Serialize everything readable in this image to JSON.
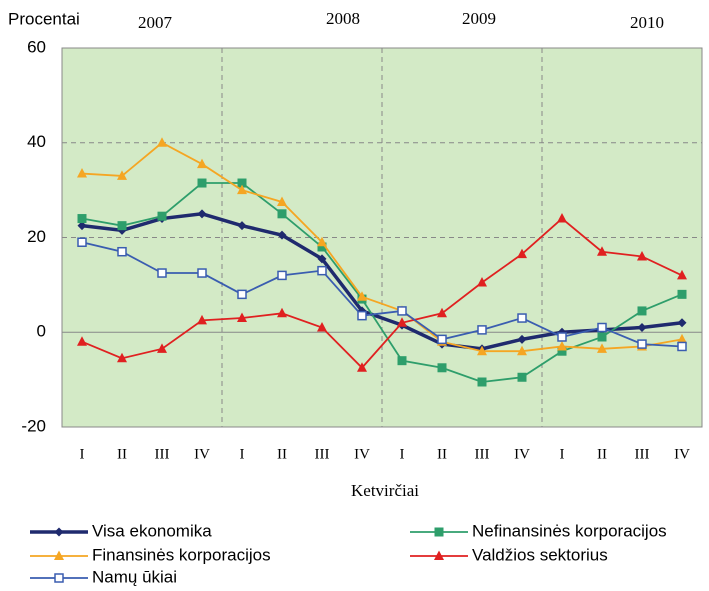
{
  "chart_data": {
    "type": "line",
    "y_label": "Procentai",
    "x_label": "Ketvirčiai",
    "annotations": [
      "2007",
      "2008",
      "2009",
      "2010"
    ],
    "categories": [
      "I",
      "II",
      "III",
      "IV",
      "I",
      "II",
      "III",
      "IV",
      "I",
      "II",
      "III",
      "IV",
      "I",
      "II",
      "III",
      "IV"
    ],
    "ylim": [
      -20,
      60
    ],
    "yticks": [
      60,
      40,
      20,
      0,
      -20
    ],
    "grid": true,
    "series": [
      {
        "name": "Visa ekonomika",
        "color": "#1f2a6e",
        "marker": "diamond",
        "values": [
          22.5,
          21.5,
          24,
          25,
          22.5,
          20.5,
          15.5,
          4.5,
          1.5,
          -2.5,
          -3.5,
          -1.5,
          0,
          0.5,
          1,
          2
        ]
      },
      {
        "name": "Nefinansinės korporacijos",
        "color": "#2e9e6b",
        "marker": "square",
        "values": [
          24,
          22.5,
          24.5,
          31.5,
          31.5,
          25,
          18,
          7,
          -6,
          -7.5,
          -10.5,
          -9.5,
          -4,
          -1,
          4.5,
          8
        ]
      },
      {
        "name": "Finansinės korporacijos",
        "color": "#f5a623",
        "marker": "triangle",
        "values": [
          33.5,
          33,
          40,
          35.5,
          30,
          27.5,
          19,
          7.5,
          4.5,
          -2,
          -4,
          -4,
          -3,
          -3.5,
          -3,
          -1.5
        ]
      },
      {
        "name": "Valdžios sektorius",
        "color": "#e02020",
        "marker": "triangle",
        "values": [
          -2,
          -5.5,
          -3.5,
          2.5,
          3,
          4,
          1,
          -7.5,
          2,
          4,
          10.5,
          16.5,
          24,
          17,
          16,
          12
        ]
      },
      {
        "name": "Namų ūkiai",
        "color": "#3a5db0",
        "marker": "open-square",
        "values": [
          19,
          17,
          12.5,
          12.5,
          8,
          12,
          13,
          3.5,
          4.5,
          -1.5,
          0.5,
          3,
          -1,
          1,
          -2.5,
          -3
        ]
      }
    ]
  }
}
